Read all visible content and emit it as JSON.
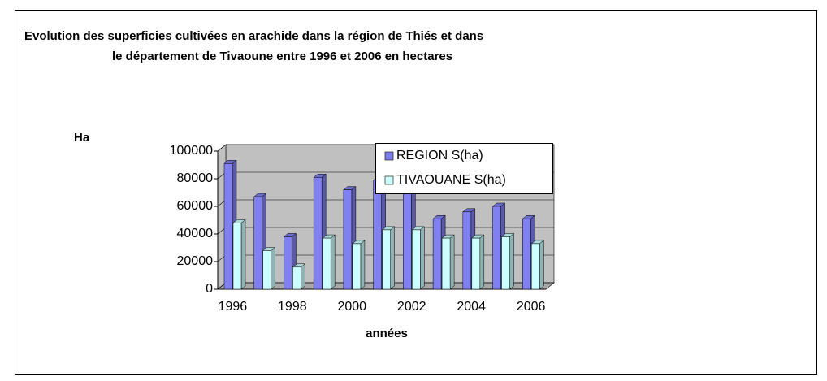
{
  "chart_data": {
    "type": "bar3d",
    "title": [
      "Evolution des superficies cultivées en arachide dans la région de Thiés et dans",
      "le département de Tivaoune entre 1996 et 2006 en hectares"
    ],
    "y_label": "Ha",
    "x_label": "années",
    "categories": [
      "1996",
      null,
      "1998",
      null,
      "2000",
      null,
      "2002",
      null,
      "2004",
      null,
      "2006"
    ],
    "series": [
      {
        "name": "REGION S(ha)",
        "color": "#8080f0",
        "values": [
          91000,
          67000,
          38000,
          81000,
          72000,
          79000,
          73000,
          51000,
          56000,
          60000,
          51000
        ]
      },
      {
        "name": "TIVAOUANE S(ha)",
        "color": "#ccffff",
        "values": [
          48000,
          28000,
          16000,
          37000,
          33000,
          43000,
          43000,
          37000,
          37000,
          38000,
          33000
        ]
      }
    ],
    "ylim": [
      0,
      100000
    ],
    "yticks": [
      0,
      20000,
      40000,
      60000,
      80000,
      100000
    ],
    "grid": true
  }
}
